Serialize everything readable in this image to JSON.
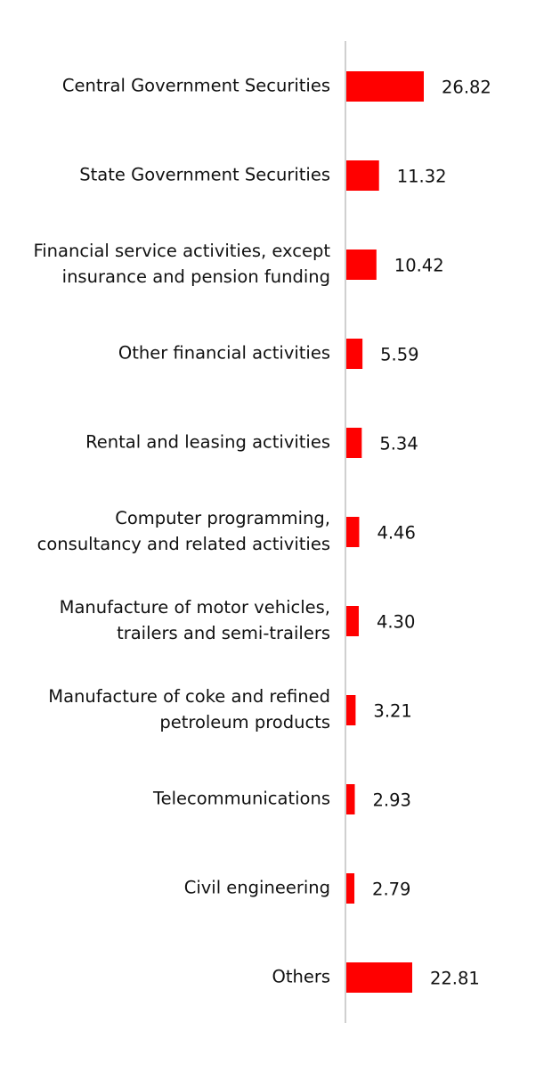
{
  "chart_data": {
    "type": "bar",
    "orientation": "horizontal",
    "title": "",
    "xlabel": "",
    "ylabel": "",
    "grid": false,
    "legend": "none",
    "bar_color": "#ff0000",
    "axis_color": "#d0d0d0",
    "xlim": [
      0,
      30
    ],
    "categories": [
      [
        "Central Government Securities"
      ],
      [
        "State Government Securities"
      ],
      [
        "Financial service activities, except",
        "insurance and pension funding"
      ],
      [
        "Other financial activities"
      ],
      [
        "Rental and leasing activities"
      ],
      [
        "Computer programming,",
        "consultancy and related activities"
      ],
      [
        "Manufacture of motor vehicles,",
        "trailers and semi-trailers"
      ],
      [
        "Manufacture of coke and refined",
        "petroleum products"
      ],
      [
        "Telecommunications"
      ],
      [
        "Civil engineering"
      ],
      [
        "Others"
      ]
    ],
    "values": [
      26.82,
      11.32,
      10.42,
      5.59,
      5.34,
      4.46,
      4.3,
      3.21,
      2.93,
      2.79,
      22.81
    ],
    "value_labels": [
      "26.82",
      "11.32",
      "10.42",
      "5.59",
      "5.34",
      "4.46",
      "4.30",
      "3.21",
      "2.93",
      "2.79",
      "22.81"
    ]
  }
}
